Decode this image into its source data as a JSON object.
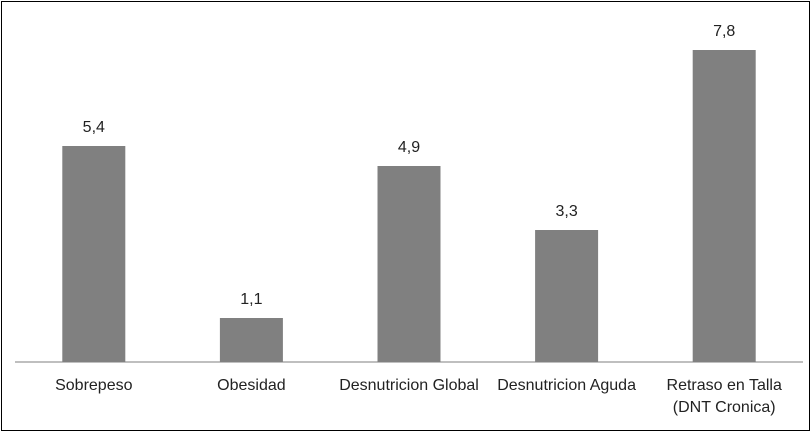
{
  "chart_data": {
    "type": "bar",
    "categories": [
      "Sobrepeso",
      "Obesidad",
      "Desnutricion Global",
      "Desnutricion Aguda",
      "Retraso en Talla (DNT Cronica)"
    ],
    "values": [
      5.4,
      1.1,
      4.9,
      3.3,
      7.8
    ],
    "value_labels": [
      "5,4",
      "1,1",
      "4,9",
      "3,3",
      "7,8"
    ],
    "color": "#808080"
  }
}
